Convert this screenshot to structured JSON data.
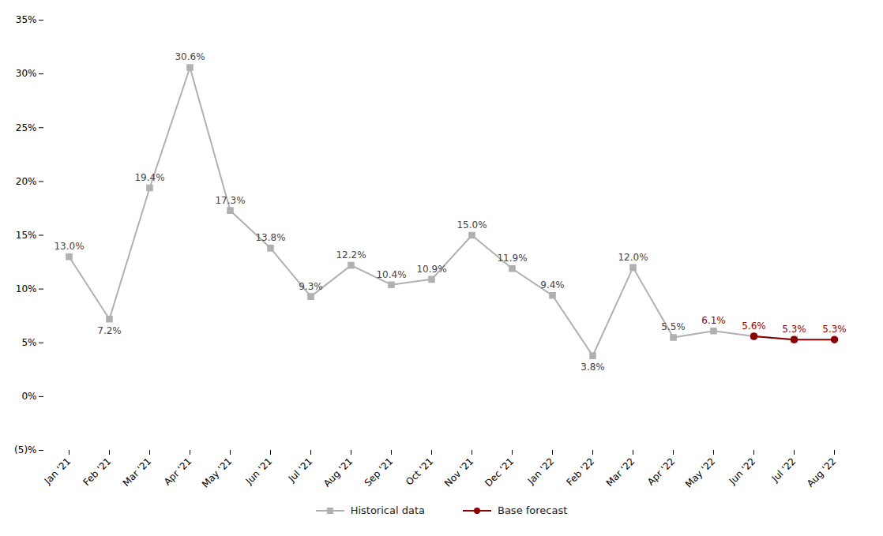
{
  "chart_data": {
    "type": "line",
    "categories": [
      "Jan '21",
      "Feb '21",
      "Mar '21",
      "Apr '21",
      "May '21",
      "Jun '21",
      "Jul '21",
      "Aug '21",
      "Sep '21",
      "Oct '21",
      "Nov '21",
      "Dec '21",
      "Jan '22",
      "Feb '22",
      "Mar '22",
      "Apr '22",
      "May '22",
      "Jun '22",
      "Jul '22",
      "Aug '22"
    ],
    "series": [
      {
        "name": "Historical data",
        "color": "#b0b0b0",
        "marker": "square",
        "values": [
          13.0,
          7.2,
          19.4,
          30.6,
          17.3,
          13.8,
          9.3,
          12.2,
          10.4,
          10.9,
          15.0,
          11.9,
          9.4,
          3.8,
          12.0,
          5.5,
          6.1,
          5.6,
          5.3,
          null
        ]
      },
      {
        "name": "Base forecast",
        "color": "#8b0000",
        "marker": "circle",
        "values": [
          null,
          null,
          null,
          null,
          null,
          null,
          null,
          null,
          null,
          null,
          null,
          null,
          null,
          null,
          null,
          null,
          null,
          5.6,
          5.3,
          5.3
        ]
      }
    ],
    "ylim": [
      -5,
      35
    ],
    "yticks": [
      {
        "value": -5,
        "label": "(5)%"
      },
      {
        "value": 0,
        "label": "0%"
      },
      {
        "value": 5,
        "label": "5%"
      },
      {
        "value": 10,
        "label": "10%"
      },
      {
        "value": 15,
        "label": "15%"
      },
      {
        "value": 20,
        "label": "20%"
      },
      {
        "value": 25,
        "label": "25%"
      },
      {
        "value": 30,
        "label": "30%"
      },
      {
        "value": 35,
        "label": "35%"
      }
    ],
    "grid": false,
    "legend": "bottom",
    "annotations": [
      {
        "x": "Jan '21",
        "y": 13.0,
        "text": "13.0%",
        "color": "#444444",
        "position": "above"
      },
      {
        "x": "Feb '21",
        "y": 7.2,
        "text": "7.2%",
        "color": "#444444",
        "position": "below"
      },
      {
        "x": "Mar '21",
        "y": 19.4,
        "text": "19.4%",
        "color": "#444444",
        "position": "above"
      },
      {
        "x": "Apr '21",
        "y": 30.6,
        "text": "30.6%",
        "color": "#444444",
        "position": "above"
      },
      {
        "x": "May '21",
        "y": 17.3,
        "text": "17.3%",
        "color": "#444444",
        "position": "above"
      },
      {
        "x": "Jun '21",
        "y": 13.8,
        "text": "13.8%",
        "color": "#444444",
        "position": "above"
      },
      {
        "x": "Jul '21",
        "y": 9.3,
        "text": "9.3%",
        "color": "#444444",
        "position": "above"
      },
      {
        "x": "Aug '21",
        "y": 12.2,
        "text": "12.2%",
        "color": "#444444",
        "position": "above"
      },
      {
        "x": "Sep '21",
        "y": 10.4,
        "text": "10.4%",
        "color": "#444444",
        "position": "above"
      },
      {
        "x": "Oct '21",
        "y": 10.9,
        "text": "10.9%",
        "color": "#444444",
        "position": "above"
      },
      {
        "x": "Nov '21",
        "y": 15.0,
        "text": "15.0%",
        "color": "#444444",
        "position": "above"
      },
      {
        "x": "Dec '21",
        "y": 11.9,
        "text": "11.9%",
        "color": "#444444",
        "position": "above"
      },
      {
        "x": "Jan '22",
        "y": 9.4,
        "text": "9.4%",
        "color": "#444444",
        "position": "above"
      },
      {
        "x": "Feb '22",
        "y": 3.8,
        "text": "3.8%",
        "color": "#444444",
        "position": "below"
      },
      {
        "x": "Mar '22",
        "y": 12.0,
        "text": "12.0%",
        "color": "#444444",
        "position": "above"
      },
      {
        "x": "Apr '22",
        "y": 5.5,
        "text": "5.5%",
        "color": "#444444",
        "position": "above"
      },
      {
        "x": "May '22",
        "y": 6.1,
        "text": "6.1%",
        "color": "#8b0000",
        "position": "above"
      },
      {
        "x": "Jun '22",
        "y": 5.6,
        "text": "5.6%",
        "color": "#8b0000",
        "position": "above"
      },
      {
        "x": "Jul '22",
        "y": 5.3,
        "text": "5.3%",
        "color": "#8b0000",
        "position": "above"
      },
      {
        "x": "Aug '22",
        "y": 5.3,
        "text": "5.3%",
        "color": "#8b0000",
        "position": "above"
      }
    ]
  }
}
